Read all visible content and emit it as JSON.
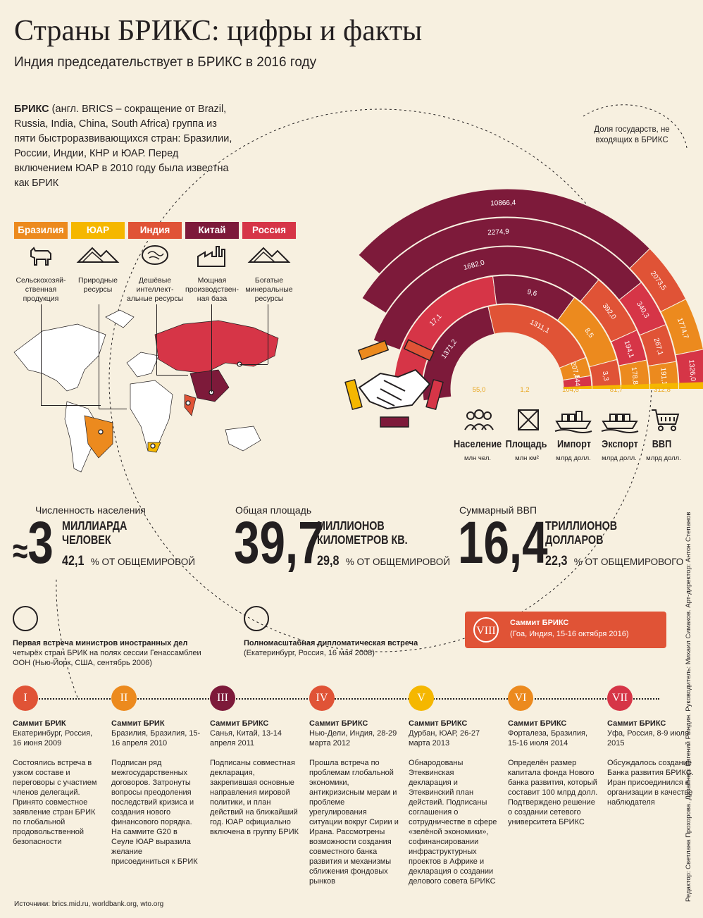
{
  "header": {
    "title": "Страны БРИКС: цифры и факты",
    "subtitle": "Индия председательствует в БРИКС в 2016 году"
  },
  "intro": {
    "bold": "БРИКС",
    "text": " (англ. BRICS – сокращение от Brazil, Russia, India, China, South Africa) группа из пяти быстроразвивающихся стран: Бразилии, России, Индии, КНР и ЮАР. Перед включением ЮАР в 2010 году была известна как БРИК"
  },
  "countries": [
    {
      "name": "Бразилия",
      "color": "#ec8a1e",
      "resource": "Сельскохозяй-ственная продукция",
      "icon": "cow-icon"
    },
    {
      "name": "ЮАР",
      "color": "#f5b700",
      "resource": "Природные ресурсы",
      "icon": "mountains-icon"
    },
    {
      "name": "Индия",
      "color": "#e05336",
      "resource": "Дешёвые интеллект-альные ресурсы",
      "icon": "brain-icon"
    },
    {
      "name": "Китай",
      "color": "#7d1a3a",
      "resource": "Мощная производствен-ная база",
      "icon": "factory-icon"
    },
    {
      "name": "Россия",
      "color": "#d63547",
      "resource": "Богатые минеральные ресурсы",
      "icon": "mountains-icon"
    }
  ],
  "colors": {
    "brazil": "#ec8a1e",
    "sa": "#f5b700",
    "india": "#e05336",
    "china": "#7d1a3a",
    "russia": "#d63547",
    "rest": "#7d1a3a"
  },
  "chart_data": {
    "type": "stacked-arc",
    "legend_label": "Доля государств, не входящих в БРИКС",
    "metrics": [
      {
        "name": "Население",
        "unit": "млн чел.",
        "icon": "people-icon",
        "values": {
          "Бразилия": 207.8,
          "ЮАР": 55.0,
          "Индия": 1311.1,
          "Китай": 1371.2,
          "Россия": 144.1
        }
      },
      {
        "name": "Площадь",
        "unit": "млн км²",
        "icon": "area-icon",
        "values": {
          "Бразилия": 8.5,
          "ЮАР": 1.2,
          "Индия": 3.3,
          "Китай": 9.6,
          "Россия": 17.1
        }
      },
      {
        "name": "Импорт",
        "unit": "млрд долл.",
        "icon": "ship-icon",
        "values": {
          "Бразилия": 178.8,
          "ЮАР": 104.6,
          "Индия": 392.0,
          "Китай": 1682.0,
          "Россия": 194.1
        }
      },
      {
        "name": "Экспорт",
        "unit": "млрд долл.",
        "icon": "ship-icon",
        "values": {
          "Бразилия": 191.1,
          "ЮАР": 81.7,
          "Индия": 267.1,
          "Китай": 2274.9,
          "Россия": 340.3
        }
      },
      {
        "name": "ВВП",
        "unit": "млрд долл.",
        "icon": "cart-icon",
        "values": {
          "Бразилия": 1774.7,
          "ЮАР": 312.8,
          "Индия": 2073.5,
          "Китай": 10866.4,
          "Россия": 1326.0
        }
      }
    ],
    "arc_labels": [
      [
        "1371,2",
        "1311,1",
        "207,8",
        "144,1"
      ],
      [
        "17,1",
        "9,6",
        "8,5",
        "3,3"
      ],
      [
        "1682,0",
        "392,0",
        "194,1",
        "178,8"
      ],
      [
        "2274,9",
        "340,3",
        "267,1",
        "191,1"
      ],
      [
        "10866,4",
        "2073,5",
        "1774,7",
        "1326,0"
      ]
    ],
    "base_labels": [
      "55,0",
      "1,2",
      "104,6",
      "81,7",
      "312,8"
    ]
  },
  "stats": [
    {
      "label": "Численность населения",
      "prefix": "≈",
      "number": "3",
      "unit1": "МИЛЛИАРДА",
      "unit2": "ЧЕЛОВЕК",
      "pct": "42,1",
      "pct_text": " % ОТ ОБЩЕМИРОВОЙ"
    },
    {
      "label": "Общая площадь",
      "prefix": "",
      "number": "39,7",
      "unit1": "МИЛЛИОНОВ",
      "unit2": "КИЛОМЕТРОВ КВ.",
      "pct": "29,8",
      "pct_text": " % ОТ ОБЩЕМИРОВОЙ"
    },
    {
      "label": "Суммарный ВВП",
      "prefix": "",
      "number": "16,4",
      "unit1": "ТРИЛЛИОНОВ",
      "unit2": "ДОЛЛАРОВ",
      "pct": "22,3",
      "pct_text": " % ОТ ОБЩЕМИРОВОГО"
    }
  ],
  "events": [
    {
      "title": "Первая встреча министров иностранных дел",
      "text": "четырёх стран БРИК на полях сессии Генассамблеи ООН (Нью-Йорк, США, сентябрь 2006)"
    },
    {
      "title": "Полномасштабная дипломатическая встреча",
      "text": "(Екатеринбург, Россия, 16 мая 2008)"
    }
  ],
  "summit_viii": {
    "roman": "VIII",
    "title": "Саммит БРИКС",
    "text": "(Гоа, Индия, 15-16 октября 2016)"
  },
  "timeline": [
    {
      "roman": "I",
      "color": "#e05336",
      "title": "Саммит БРИК",
      "place": "Екатеринбург, Россия, 16 июня 2009",
      "text": "Состоялись встреча в узком составе и переговоры с участием членов делегаций. Принято совместное заявление стран БРИК по глобальной продовольственной безопасности"
    },
    {
      "roman": "II",
      "color": "#ec8a1e",
      "title": "Саммит БРИК",
      "place": "Бразилия, Бразилия, 15-16 апреля 2010",
      "text": "Подписан ряд межгосударственных договоров. Затронуты вопросы преодоления последствий кризиса и создания нового финансового порядка. На саммите G20 в Сеуле ЮАР выразила желание присоединиться к БРИК"
    },
    {
      "roman": "III",
      "color": "#7d1a3a",
      "title": "Саммит БРИКС",
      "place": "Санья, Китай, 13-14 апреля 2011",
      "text": "Подписаны совместная декларация, закрепившая основные направления мировой политики, и план действий на ближайший год. ЮАР официально включена в группу БРИК"
    },
    {
      "roman": "IV",
      "color": "#e05336",
      "title": "Саммит БРИКС",
      "place": "Нью-Дели, Индия, 28-29 марта 2012",
      "text": "Прошла встреча по проблемам глобальной экономики, антикризисным мерам и проблеме урегулирования ситуации вокруг Сирии и Ирана. Рассмотрены возможности создания совместного банка развития и механизмы сближения фондовых рынков"
    },
    {
      "roman": "V",
      "color": "#f5b700",
      "title": "Саммит БРИКС",
      "place": "Дурбан, ЮАР, 26-27 марта 2013",
      "text": "Обнародованы Этеквинская декларация и Этеквинский план действий. Подписаны соглашения о сотрудничестве в сфере «зелёной экономики», софинансировании инфраструктурных проектов в Африке и декларация о создании делового совета БРИКС"
    },
    {
      "roman": "VI",
      "color": "#ec8a1e",
      "title": "Саммит БРИКС",
      "place": "Форталеза, Бразилия, 15-16 июля 2014",
      "text": "Определён размер капитала фонда Нового банка развития, который составит 100 млрд долл. Подтверждено решение о создании сетевого университета БРИКС"
    },
    {
      "roman": "VII",
      "color": "#d63547",
      "title": "Саммит БРИКС",
      "place": "Уфа, Россия, 8-9 июля 2015",
      "text": "Обсуждалось создание Банка развития БРИКС. Иран присоединился к организации в качестве наблюдателя"
    }
  ],
  "footer": {
    "source": "Источники: brics.mid.ru, worldbank.org, wto.org",
    "credits": "Редактор: Светлана Прохорова. Дизайнер: Евгений Рындин. Руководитель: Михаил Симаков. Арт-директор: Антон Степанов"
  }
}
